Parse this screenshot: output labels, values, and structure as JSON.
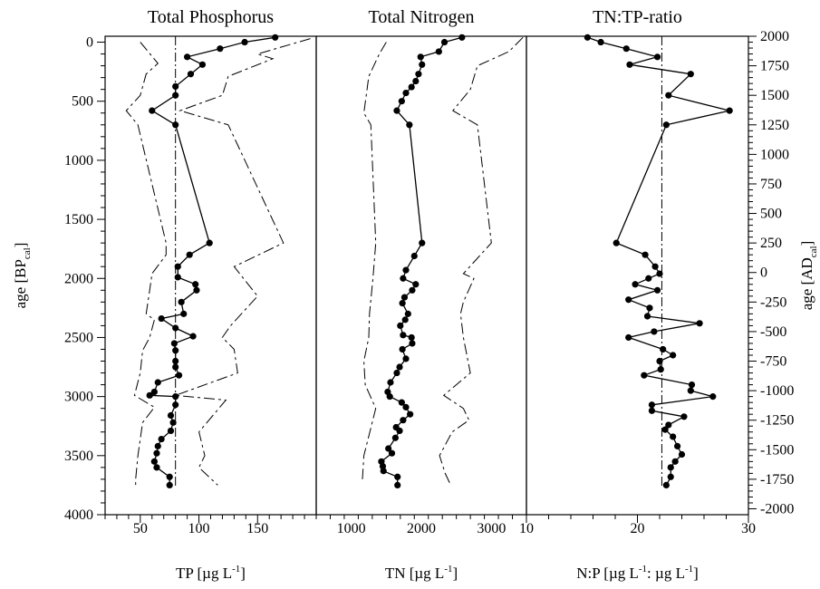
{
  "chart_data": [
    {
      "type": "line",
      "title": "Total Phosphorus",
      "xlabel": {
        "pre": "TP [µg L",
        "sup": "-1",
        "post": "]"
      },
      "ylabel": {
        "pre": "age [BP",
        "sub": "cal",
        "post": "]"
      },
      "xlim": [
        20,
        200
      ],
      "xticks": [
        50,
        100,
        150
      ],
      "ylim": [
        4000,
        -50
      ],
      "yticks": [
        0,
        500,
        1000,
        1500,
        2000,
        2500,
        3000,
        3500,
        4000
      ],
      "reference_x": 80,
      "series": [
        {
          "style": "solid-markers",
          "points": [
            [
              165,
              -40
            ],
            [
              139,
              0
            ],
            [
              118,
              55
            ],
            [
              90,
              125
            ],
            [
              103,
              190
            ],
            [
              93,
              270
            ],
            [
              80,
              375
            ],
            [
              80,
              450
            ],
            [
              60,
              580
            ],
            [
              80,
              700
            ],
            [
              109,
              1700
            ],
            [
              92,
              1800
            ],
            [
              82,
              1900
            ],
            [
              82,
              1990
            ],
            [
              97,
              2050
            ],
            [
              98,
              2100
            ],
            [
              85,
              2200
            ],
            [
              87,
              2300
            ],
            [
              68,
              2340
            ],
            [
              80,
              2420
            ],
            [
              95,
              2490
            ],
            [
              79,
              2550
            ],
            [
              80,
              2610
            ],
            [
              80,
              2700
            ],
            [
              80,
              2750
            ],
            [
              83,
              2820
            ],
            [
              65,
              2880
            ],
            [
              62,
              2960
            ],
            [
              58,
              2990
            ],
            [
              80,
              3000
            ],
            [
              80,
              3070
            ],
            [
              76,
              3160
            ],
            [
              78,
              3220
            ],
            [
              76,
              3290
            ],
            [
              68,
              3360
            ],
            [
              65,
              3420
            ],
            [
              64,
              3480
            ],
            [
              62,
              3550
            ],
            [
              64,
              3600
            ],
            [
              75,
              3680
            ],
            [
              75,
              3750
            ]
          ]
        },
        {
          "style": "dash-low",
          "points": [
            [
              50,
              0
            ],
            [
              65,
              180
            ],
            [
              55,
              270
            ],
            [
              50,
              450
            ],
            [
              38,
              580
            ],
            [
              48,
              700
            ],
            [
              72,
              1700
            ],
            [
              72,
              1800
            ],
            [
              60,
              1960
            ],
            [
              58,
              2100
            ],
            [
              55,
              2300
            ],
            [
              62,
              2350
            ],
            [
              58,
              2500
            ],
            [
              52,
              2610
            ],
            [
              50,
              2800
            ],
            [
              45,
              2990
            ],
            [
              62,
              3090
            ],
            [
              52,
              3220
            ],
            [
              48,
              3500
            ],
            [
              46,
              3700
            ],
            [
              46,
              3750
            ]
          ]
        },
        {
          "style": "dash-high",
          "points": [
            [
              195,
              -30
            ],
            [
              150,
              100
            ],
            [
              163,
              140
            ],
            [
              125,
              290
            ],
            [
              120,
              450
            ],
            [
              84,
              580
            ],
            [
              125,
              700
            ],
            [
              172,
              1700
            ],
            [
              130,
              1900
            ],
            [
              138,
              2000
            ],
            [
              150,
              2150
            ],
            [
              127,
              2400
            ],
            [
              120,
              2500
            ],
            [
              130,
              2600
            ],
            [
              133,
              2800
            ],
            [
              80,
              2990
            ],
            [
              123,
              3030
            ],
            [
              100,
              3300
            ],
            [
              105,
              3500
            ],
            [
              100,
              3600
            ],
            [
              116,
              3750
            ]
          ]
        }
      ]
    },
    {
      "type": "line",
      "title": "Total Nitrogen",
      "xlabel": {
        "pre": "TN [µg L",
        "sup": "-1",
        "post": "]"
      },
      "xlim": [
        500,
        3500
      ],
      "xticks": [
        1000,
        2000,
        3000
      ],
      "ylim": [
        4000,
        -50
      ],
      "reference_x": null,
      "series": [
        {
          "style": "solid-markers",
          "points": [
            [
              2580,
              -40
            ],
            [
              2330,
              0
            ],
            [
              2250,
              80
            ],
            [
              1990,
              125
            ],
            [
              2010,
              190
            ],
            [
              1960,
              270
            ],
            [
              1920,
              330
            ],
            [
              1860,
              380
            ],
            [
              1780,
              430
            ],
            [
              1720,
              500
            ],
            [
              1650,
              580
            ],
            [
              1830,
              700
            ],
            [
              2010,
              1700
            ],
            [
              1900,
              1810
            ],
            [
              1780,
              1930
            ],
            [
              1740,
              2000
            ],
            [
              1920,
              2050
            ],
            [
              1870,
              2100
            ],
            [
              1760,
              2160
            ],
            [
              1730,
              2210
            ],
            [
              1810,
              2300
            ],
            [
              1770,
              2350
            ],
            [
              1700,
              2400
            ],
            [
              1740,
              2480
            ],
            [
              1860,
              2500
            ],
            [
              1870,
              2550
            ],
            [
              1730,
              2600
            ],
            [
              1780,
              2680
            ],
            [
              1690,
              2750
            ],
            [
              1650,
              2800
            ],
            [
              1560,
              2880
            ],
            [
              1520,
              2960
            ],
            [
              1550,
              3000
            ],
            [
              1720,
              3050
            ],
            [
              1780,
              3090
            ],
            [
              1840,
              3150
            ],
            [
              1740,
              3200
            ],
            [
              1640,
              3260
            ],
            [
              1690,
              3290
            ],
            [
              1630,
              3350
            ],
            [
              1530,
              3440
            ],
            [
              1580,
              3480
            ],
            [
              1430,
              3550
            ],
            [
              1450,
              3590
            ],
            [
              1460,
              3630
            ],
            [
              1660,
              3680
            ],
            [
              1660,
              3750
            ]
          ]
        },
        {
          "style": "dash-low",
          "points": [
            [
              1500,
              0
            ],
            [
              1400,
              100
            ],
            [
              1250,
              290
            ],
            [
              1180,
              600
            ],
            [
              1280,
              700
            ],
            [
              1350,
              1700
            ],
            [
              1310,
              2000
            ],
            [
              1260,
              2300
            ],
            [
              1250,
              2500
            ],
            [
              1180,
              2700
            ],
            [
              1200,
              2900
            ],
            [
              1350,
              3100
            ],
            [
              1180,
              3500
            ],
            [
              1160,
              3700
            ]
          ]
        },
        {
          "style": "dash-high",
          "points": [
            [
              3450,
              -40
            ],
            [
              3250,
              80
            ],
            [
              2800,
              200
            ],
            [
              2700,
              400
            ],
            [
              2450,
              580
            ],
            [
              2800,
              700
            ],
            [
              3000,
              1700
            ],
            [
              2600,
              1960
            ],
            [
              2750,
              2000
            ],
            [
              2600,
              2200
            ],
            [
              2560,
              2300
            ],
            [
              2600,
              2500
            ],
            [
              2700,
              2800
            ],
            [
              2320,
              2990
            ],
            [
              2600,
              3100
            ],
            [
              2680,
              3200
            ],
            [
              2440,
              3300
            ],
            [
              2260,
              3500
            ],
            [
              2340,
              3650
            ],
            [
              2420,
              3750
            ]
          ]
        }
      ]
    },
    {
      "type": "line",
      "title": "TN:TP-ratio",
      "xlabel": {
        "pre": "N:P [µg L",
        "sup": "-1",
        "post": ": µg L",
        "sup2": "-1",
        "post2": "]"
      },
      "ylabel_right": {
        "pre": "age [AD",
        "sub": "cal",
        "post": "]"
      },
      "xlim": [
        10,
        30
      ],
      "xticks": [
        10,
        20,
        30
      ],
      "ylim_right": [
        -2050,
        2000
      ],
      "yticks_right": [
        2000,
        1750,
        1500,
        1250,
        1000,
        750,
        500,
        250,
        0,
        -250,
        -500,
        -750,
        -1000,
        -1250,
        -1500,
        -1750,
        -2000
      ],
      "reference_x": 22.2,
      "series": [
        {
          "style": "solid-markers",
          "points": [
            [
              15.5,
              -40
            ],
            [
              16.7,
              0
            ],
            [
              19.0,
              55
            ],
            [
              21.8,
              125
            ],
            [
              19.3,
              190
            ],
            [
              24.8,
              270
            ],
            [
              22.8,
              450
            ],
            [
              28.3,
              580
            ],
            [
              22.6,
              700
            ],
            [
              18.1,
              1700
            ],
            [
              20.7,
              1800
            ],
            [
              21.6,
              1900
            ],
            [
              22.0,
              1960
            ],
            [
              21.0,
              2000
            ],
            [
              19.8,
              2050
            ],
            [
              21.8,
              2100
            ],
            [
              19.2,
              2180
            ],
            [
              21.1,
              2250
            ],
            [
              20.9,
              2320
            ],
            [
              25.6,
              2380
            ],
            [
              21.5,
              2450
            ],
            [
              19.2,
              2500
            ],
            [
              22.3,
              2600
            ],
            [
              23.2,
              2650
            ],
            [
              22.0,
              2700
            ],
            [
              22.1,
              2770
            ],
            [
              20.6,
              2820
            ],
            [
              24.9,
              2900
            ],
            [
              24.8,
              2950
            ],
            [
              26.8,
              3000
            ],
            [
              21.3,
              3070
            ],
            [
              21.3,
              3120
            ],
            [
              24.2,
              3170
            ],
            [
              22.8,
              3240
            ],
            [
              22.5,
              3280
            ],
            [
              23.2,
              3340
            ],
            [
              23.6,
              3420
            ],
            [
              24.0,
              3490
            ],
            [
              23.4,
              3550
            ],
            [
              23.0,
              3600
            ],
            [
              23.0,
              3680
            ],
            [
              22.6,
              3750
            ]
          ]
        }
      ]
    }
  ]
}
